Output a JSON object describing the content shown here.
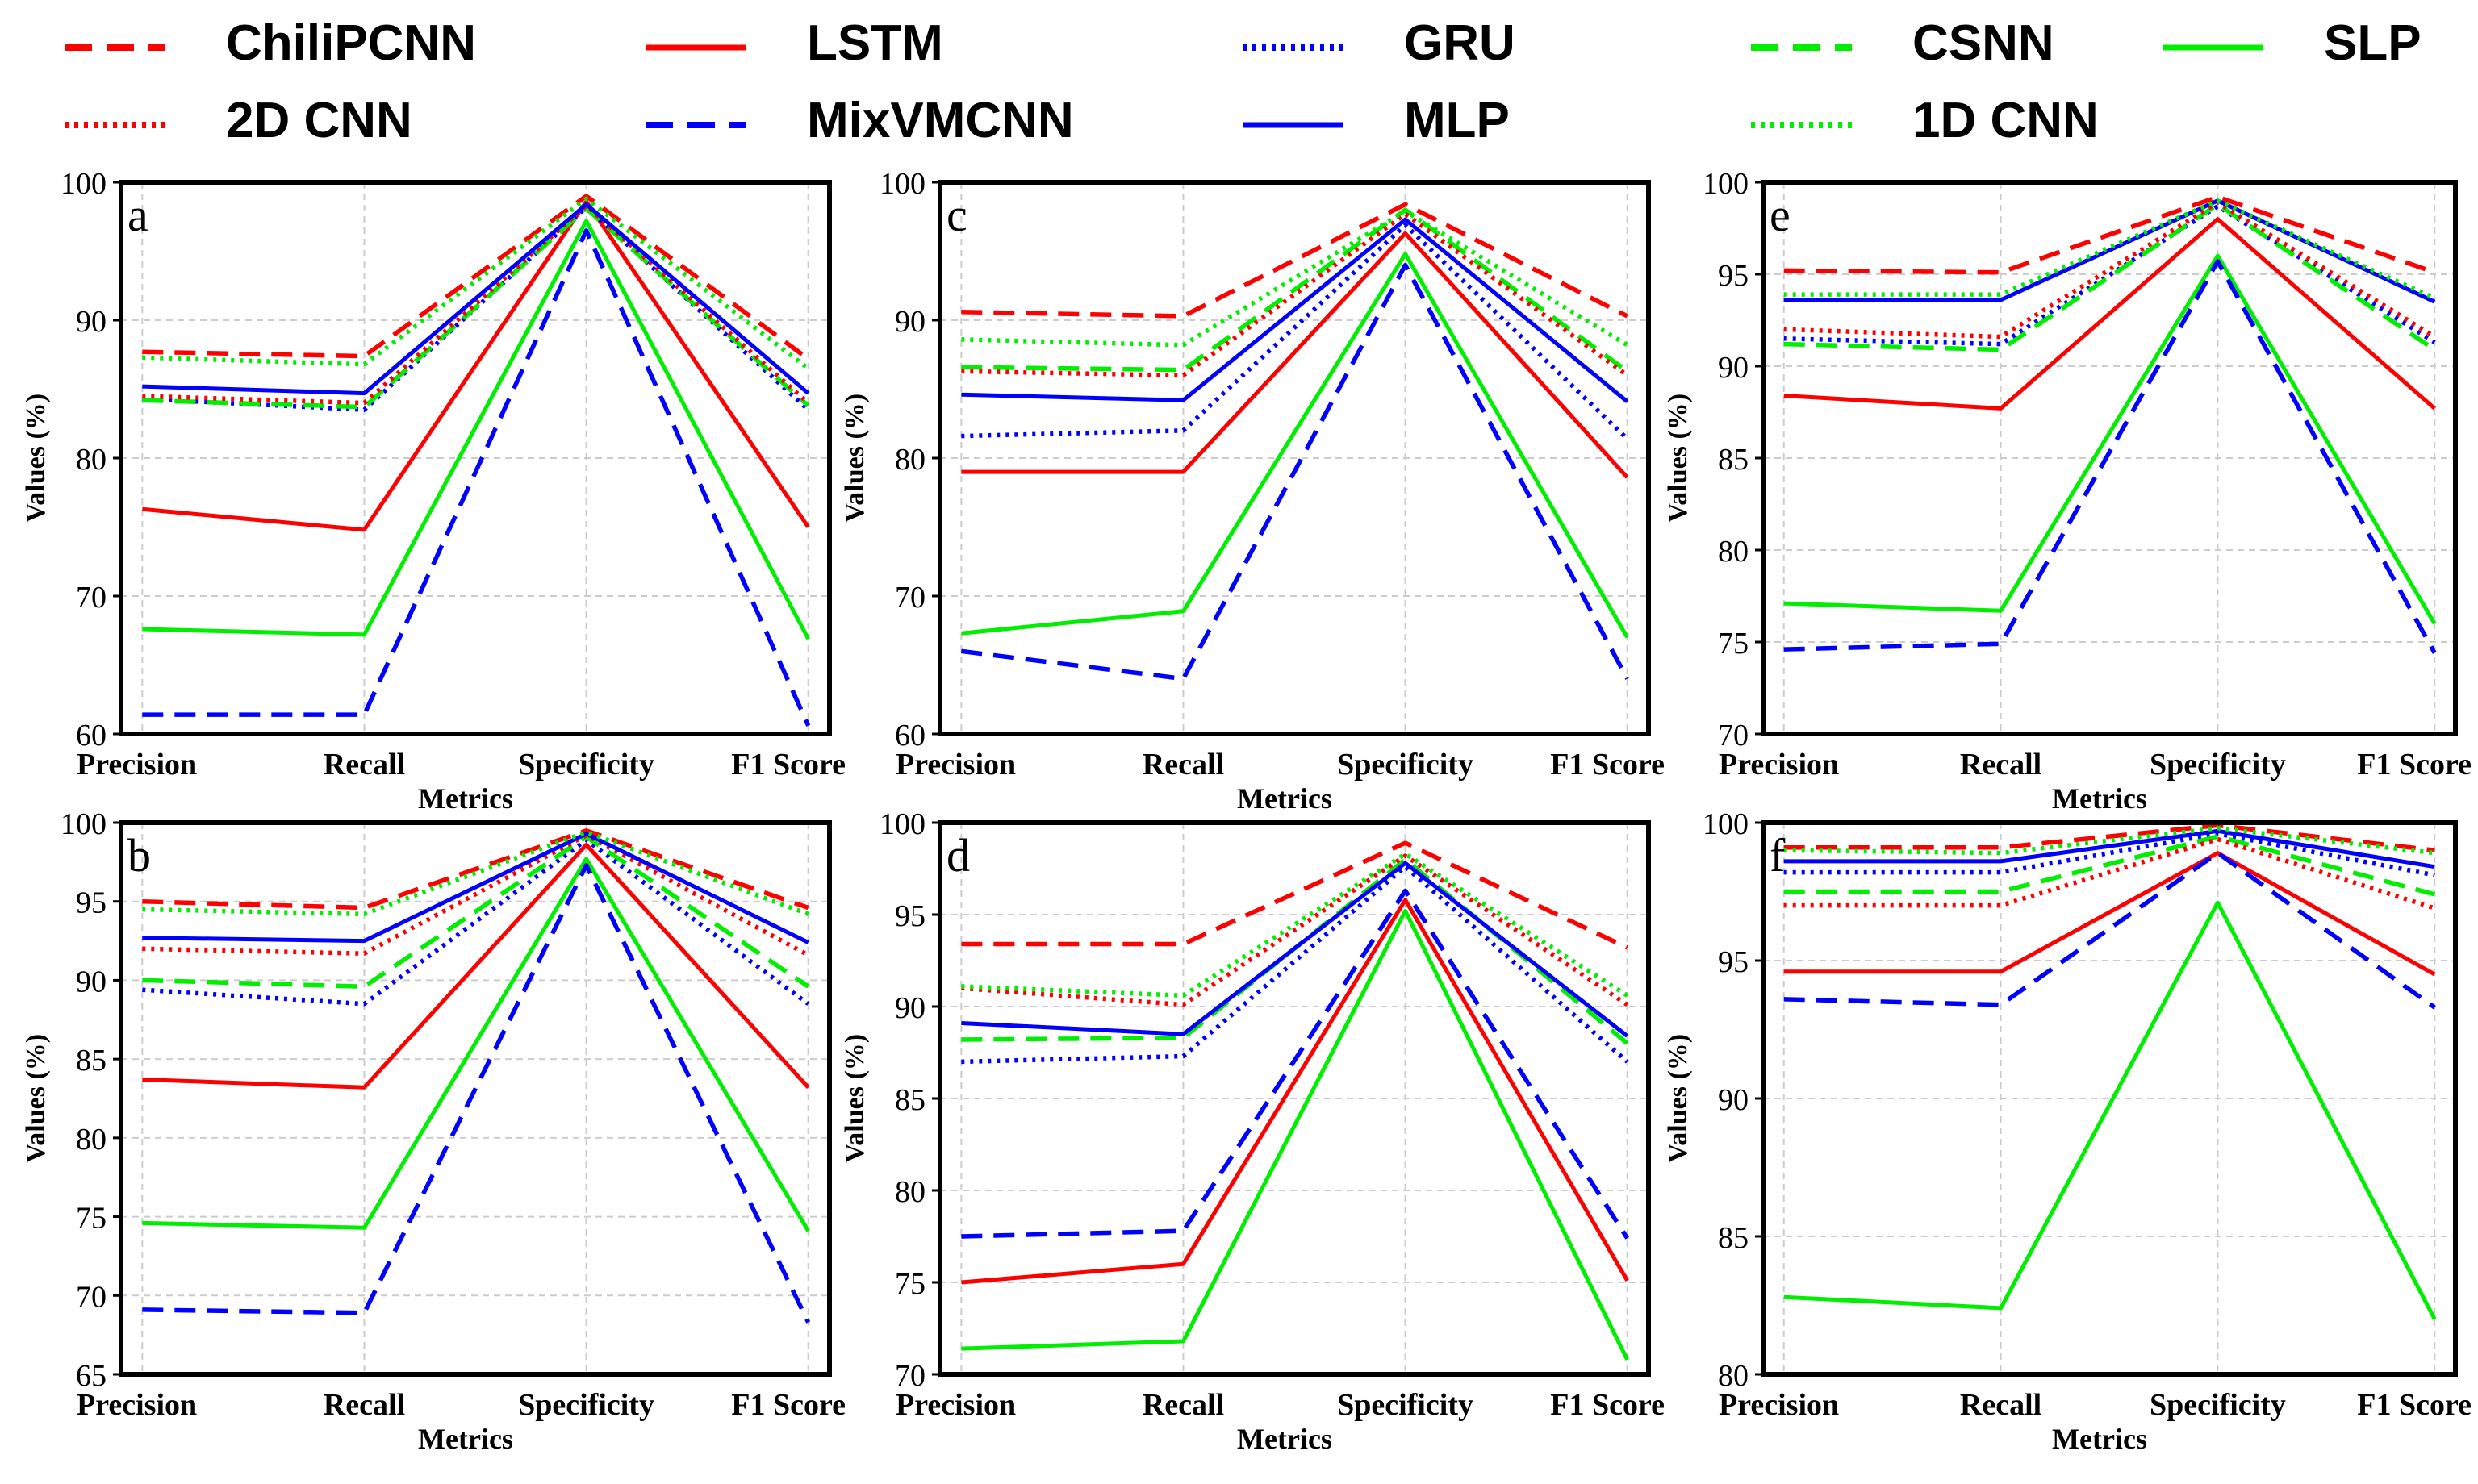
{
  "legend": [
    {
      "name": "ChiliPCNN",
      "color": "#ff0000",
      "style": "dashed"
    },
    {
      "name": "LSTM",
      "color": "#ff0000",
      "style": "solid"
    },
    {
      "name": "GRU",
      "color": "#0000ff",
      "style": "dotted"
    },
    {
      "name": "CSNN",
      "color": "#00ee00",
      "style": "dashed"
    },
    {
      "name": "SLP",
      "color": "#00ee00",
      "style": "solid"
    },
    {
      "name": "2D CNN",
      "color": "#ff0000",
      "style": "dotted"
    },
    {
      "name": "MixVMCNN",
      "color": "#0000ff",
      "style": "dashed"
    },
    {
      "name": "MLP",
      "color": "#0000ff",
      "style": "solid"
    },
    {
      "name": "1D CNN",
      "color": "#00ee00",
      "style": "dotted"
    }
  ],
  "chart_data": [
    {
      "panel": "a",
      "type": "line",
      "categories": [
        "Precision",
        "Recall",
        "Specificity",
        "F1 Score"
      ],
      "xlabel": "Metrics",
      "ylabel": "Values (%)",
      "ylim": [
        60,
        100
      ],
      "yticks": [
        60,
        70,
        80,
        90,
        100
      ],
      "series": [
        {
          "name": "ChiliPCNN",
          "values": [
            87.7,
            87.4,
            99.0,
            87.2
          ]
        },
        {
          "name": "LSTM",
          "values": [
            76.3,
            74.8,
            98.6,
            75.0
          ]
        },
        {
          "name": "GRU",
          "values": [
            84.3,
            83.5,
            98.2,
            83.5
          ]
        },
        {
          "name": "CSNN",
          "values": [
            84.2,
            83.7,
            98.1,
            83.8
          ]
        },
        {
          "name": "SLP",
          "values": [
            67.6,
            67.2,
            97.2,
            66.9
          ]
        },
        {
          "name": "2D CNN",
          "values": [
            84.5,
            84.0,
            98.3,
            84.0
          ]
        },
        {
          "name": "MixVMCNN",
          "values": [
            61.4,
            61.4,
            96.5,
            60.6
          ]
        },
        {
          "name": "MLP",
          "values": [
            85.2,
            84.7,
            98.4,
            84.7
          ]
        },
        {
          "name": "1D CNN",
          "values": [
            87.3,
            86.8,
            98.8,
            86.5
          ]
        }
      ]
    },
    {
      "panel": "b",
      "type": "line",
      "categories": [
        "Precision",
        "Recall",
        "Specificity",
        "F1 Score"
      ],
      "xlabel": "Metrics",
      "ylabel": "Values (%)",
      "ylim": [
        65,
        100
      ],
      "yticks": [
        65,
        70,
        75,
        80,
        85,
        90,
        95,
        100
      ],
      "series": [
        {
          "name": "ChiliPCNN",
          "values": [
            95.0,
            94.6,
            99.5,
            94.6
          ]
        },
        {
          "name": "LSTM",
          "values": [
            83.7,
            83.2,
            98.6,
            83.2
          ]
        },
        {
          "name": "GRU",
          "values": [
            89.4,
            88.5,
            98.9,
            88.5
          ]
        },
        {
          "name": "CSNN",
          "values": [
            90.0,
            89.6,
            99.1,
            89.6
          ]
        },
        {
          "name": "SLP",
          "values": [
            74.6,
            74.3,
            97.7,
            74.1
          ]
        },
        {
          "name": "2D CNN",
          "values": [
            92.0,
            91.7,
            99.2,
            91.6
          ]
        },
        {
          "name": "MixVMCNN",
          "values": [
            69.1,
            68.9,
            97.3,
            68.3
          ]
        },
        {
          "name": "MLP",
          "values": [
            92.7,
            92.5,
            99.3,
            92.4
          ]
        },
        {
          "name": "1D CNN",
          "values": [
            94.5,
            94.2,
            99.4,
            94.2
          ]
        }
      ]
    },
    {
      "panel": "c",
      "type": "line",
      "categories": [
        "Precision",
        "Recall",
        "Specificity",
        "F1 Score"
      ],
      "xlabel": "Metrics",
      "ylabel": "Values (%)",
      "ylim": [
        60,
        100
      ],
      "yticks": [
        60,
        70,
        80,
        90,
        100
      ],
      "series": [
        {
          "name": "ChiliPCNN",
          "values": [
            90.6,
            90.3,
            98.4,
            90.3
          ]
        },
        {
          "name": "LSTM",
          "values": [
            79.0,
            79.0,
            96.3,
            78.6
          ]
        },
        {
          "name": "GRU",
          "values": [
            81.6,
            82.0,
            96.9,
            81.4
          ]
        },
        {
          "name": "CSNN",
          "values": [
            86.6,
            86.4,
            98.0,
            86.3
          ]
        },
        {
          "name": "SLP",
          "values": [
            67.3,
            68.9,
            94.8,
            67.0
          ]
        },
        {
          "name": "2D CNN",
          "values": [
            86.3,
            86.0,
            97.7,
            86.0
          ]
        },
        {
          "name": "MixVMCNN",
          "values": [
            66.0,
            64.0,
            94.0,
            64.0
          ]
        },
        {
          "name": "MLP",
          "values": [
            84.6,
            84.2,
            97.3,
            84.1
          ]
        },
        {
          "name": "1D CNN",
          "values": [
            88.6,
            88.2,
            97.9,
            88.2
          ]
        }
      ]
    },
    {
      "panel": "d",
      "type": "line",
      "categories": [
        "Precision",
        "Recall",
        "Specificity",
        "F1 Score"
      ],
      "xlabel": "Metrics",
      "ylabel": "Values (%)",
      "ylim": [
        70,
        100
      ],
      "yticks": [
        70,
        75,
        80,
        85,
        90,
        95,
        100
      ],
      "series": [
        {
          "name": "ChiliPCNN",
          "values": [
            93.4,
            93.4,
            98.9,
            93.2
          ]
        },
        {
          "name": "LSTM",
          "values": [
            75.0,
            76.0,
            95.8,
            75.1
          ]
        },
        {
          "name": "GRU",
          "values": [
            87.0,
            87.3,
            97.6,
            87.0
          ]
        },
        {
          "name": "CSNN",
          "values": [
            88.2,
            88.3,
            98.0,
            88.0
          ]
        },
        {
          "name": "SLP",
          "values": [
            71.4,
            71.8,
            95.2,
            70.8
          ]
        },
        {
          "name": "2D CNN",
          "values": [
            91.0,
            90.1,
            98.2,
            90.1
          ]
        },
        {
          "name": "MixVMCNN",
          "values": [
            77.5,
            77.8,
            96.3,
            77.4
          ]
        },
        {
          "name": "MLP",
          "values": [
            89.1,
            88.5,
            97.8,
            88.4
          ]
        },
        {
          "name": "1D CNN",
          "values": [
            91.1,
            90.6,
            98.3,
            90.6
          ]
        }
      ]
    },
    {
      "panel": "e",
      "type": "line",
      "categories": [
        "Precision",
        "Recall",
        "Specificity",
        "F1 Score"
      ],
      "xlabel": "Metrics",
      "ylabel": "Values (%)",
      "ylim": [
        70,
        100
      ],
      "yticks": [
        70,
        75,
        80,
        85,
        90,
        95,
        100
      ],
      "series": [
        {
          "name": "ChiliPCNN",
          "values": [
            95.2,
            95.1,
            99.2,
            95.1
          ]
        },
        {
          "name": "LSTM",
          "values": [
            88.4,
            87.7,
            98.0,
            87.7
          ]
        },
        {
          "name": "GRU",
          "values": [
            91.5,
            91.2,
            98.7,
            91.3
          ]
        },
        {
          "name": "CSNN",
          "values": [
            91.2,
            90.9,
            98.8,
            90.9
          ]
        },
        {
          "name": "SLP",
          "values": [
            77.1,
            76.7,
            96.0,
            76.0
          ]
        },
        {
          "name": "2D CNN",
          "values": [
            92.0,
            91.6,
            98.9,
            91.6
          ]
        },
        {
          "name": "MixVMCNN",
          "values": [
            74.6,
            74.9,
            95.7,
            74.4
          ]
        },
        {
          "name": "MLP",
          "values": [
            93.6,
            93.6,
            99.0,
            93.5
          ]
        },
        {
          "name": "1D CNN",
          "values": [
            93.9,
            93.9,
            99.0,
            93.7
          ]
        }
      ]
    },
    {
      "panel": "f",
      "type": "line",
      "categories": [
        "Precision",
        "Recall",
        "Specificity",
        "F1 Score"
      ],
      "xlabel": "Metrics",
      "ylabel": "Values (%)",
      "ylim": [
        80,
        100
      ],
      "yticks": [
        80,
        85,
        90,
        95,
        100
      ],
      "series": [
        {
          "name": "ChiliPCNN",
          "values": [
            99.1,
            99.1,
            99.9,
            99.0
          ]
        },
        {
          "name": "LSTM",
          "values": [
            94.6,
            94.6,
            98.9,
            94.5
          ]
        },
        {
          "name": "GRU",
          "values": [
            98.2,
            98.2,
            99.6,
            98.1
          ]
        },
        {
          "name": "CSNN",
          "values": [
            97.5,
            97.5,
            99.5,
            97.4
          ]
        },
        {
          "name": "SLP",
          "values": [
            82.8,
            82.4,
            97.1,
            82.0
          ]
        },
        {
          "name": "2D CNN",
          "values": [
            97.0,
            97.0,
            99.4,
            96.9
          ]
        },
        {
          "name": "MixVMCNN",
          "values": [
            93.6,
            93.4,
            98.9,
            93.3
          ]
        },
        {
          "name": "MLP",
          "values": [
            98.6,
            98.6,
            99.7,
            98.4
          ]
        },
        {
          "name": "1D CNN",
          "values": [
            99.0,
            98.9,
            99.8,
            98.9
          ]
        }
      ]
    }
  ]
}
